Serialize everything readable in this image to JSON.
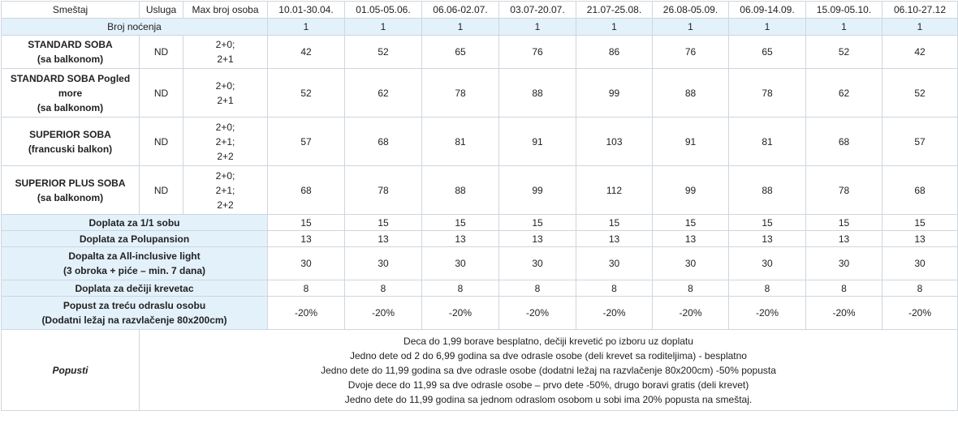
{
  "header": {
    "smestaj": "Smeštaj",
    "usluga": "Usluga",
    "max_persons": "Max broj osoba",
    "periods": [
      "10.01-30.04.",
      "01.05-05.06.",
      "06.06-02.07.",
      "03.07-20.07.",
      "21.07-25.08.",
      "26.08-05.09.",
      "06.09-14.09.",
      "15.09-05.10.",
      "06.10-27.12"
    ]
  },
  "nights": {
    "label": "Broj noćenja",
    "values": [
      "1",
      "1",
      "1",
      "1",
      "1",
      "1",
      "1",
      "1",
      "1"
    ]
  },
  "rooms": [
    {
      "name_lines": [
        "STANDARD SOBA",
        "(sa balkonom)"
      ],
      "service": "ND",
      "persons": [
        "2+0;",
        "2+1"
      ],
      "prices": [
        "42",
        "52",
        "65",
        "76",
        "86",
        "76",
        "65",
        "52",
        "42"
      ]
    },
    {
      "name_lines": [
        "STANDARD SOBA Pogled",
        "more",
        "(sa balkonom)"
      ],
      "service": "ND",
      "persons": [
        "2+0;",
        "2+1"
      ],
      "prices": [
        "52",
        "62",
        "78",
        "88",
        "99",
        "88",
        "78",
        "62",
        "52"
      ]
    },
    {
      "name_lines": [
        "SUPERIOR SOBA",
        "(francuski balkon)"
      ],
      "service": "ND",
      "persons": [
        "2+0;",
        "2+1;",
        "2+2"
      ],
      "prices": [
        "57",
        "68",
        "81",
        "91",
        "103",
        "91",
        "81",
        "68",
        "57"
      ]
    },
    {
      "name_lines": [
        "SUPERIOR PLUS SOBA",
        "(sa balkonom)"
      ],
      "service": "ND",
      "persons": [
        "2+0;",
        "2+1;",
        "2+2"
      ],
      "prices": [
        "68",
        "78",
        "88",
        "99",
        "112",
        "99",
        "88",
        "78",
        "68"
      ]
    }
  ],
  "surcharges": [
    {
      "label_lines": [
        "Doplata za 1/1 sobu"
      ],
      "values": [
        "15",
        "15",
        "15",
        "15",
        "15",
        "15",
        "15",
        "15",
        "15"
      ]
    },
    {
      "label_lines": [
        "Doplata za Polupansion"
      ],
      "values": [
        "13",
        "13",
        "13",
        "13",
        "13",
        "13",
        "13",
        "13",
        "13"
      ]
    },
    {
      "label_lines": [
        "Dopalta za All-inclusive light",
        "(3 obroka + piće – min. 7 dana)"
      ],
      "values": [
        "30",
        "30",
        "30",
        "30",
        "30",
        "30",
        "30",
        "30",
        "30"
      ]
    },
    {
      "label_lines": [
        "Doplata za dečiji krevetac"
      ],
      "values": [
        "8",
        "8",
        "8",
        "8",
        "8",
        "8",
        "8",
        "8",
        "8"
      ]
    },
    {
      "label_lines": [
        "Popust za treću odraslu osobu",
        "(Dodatni ležaj na razvlačenje 80x200cm)"
      ],
      "values": [
        "-20%",
        "-20%",
        "-20%",
        "-20%",
        "-20%",
        "-20%",
        "-20%",
        "-20%",
        "-20%"
      ]
    }
  ],
  "discounts": {
    "label": "Popusti",
    "lines": [
      "Deca do 1,99 borave besplatno, dečiji krevetić po izboru uz doplatu",
      "Jedno dete od 2 do 6,99 godina sa dve odrasle osobe (deli krevet sa roditeljima) - besplatno",
      "Jedno dete do 11,99 godina sa dve odrasle osobe (dodatni ležaj na razvlačenje 80x200cm) -50% popusta",
      "Dvoje dece do 11,99 sa dve odrasle osobe – prvo dete -50%, drugo boravi gratis (deli krevet)",
      "Jedno dete do 11,99 godina sa jednom odraslom osobom u sobi ima 20% popusta na smeštaj."
    ]
  },
  "colors": {
    "highlight_bg": "#e3f1fb",
    "border": "#cfd6dd",
    "text": "#222222"
  }
}
